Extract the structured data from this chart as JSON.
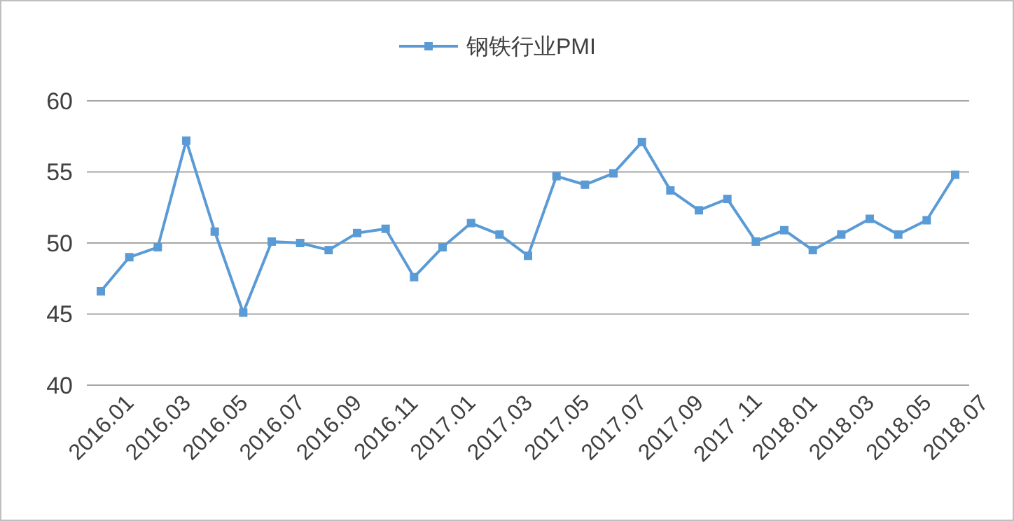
{
  "chart_data": {
    "type": "line",
    "categories": [
      "2016.01",
      null,
      "2016.03",
      null,
      "2016.05",
      null,
      "2016.07",
      null,
      "2016.09",
      null,
      "2016.11",
      null,
      "2017.01",
      null,
      "2017.03",
      null,
      "2017.05",
      null,
      "2017.07",
      null,
      "2017.09",
      null,
      "2017 .11",
      null,
      "2018.01",
      null,
      "2018.03",
      null,
      "2018.05",
      null,
      "2018.07"
    ],
    "series": [
      {
        "name": "钢铁行业PMI",
        "color": "#5b9bd5",
        "values": [
          46.6,
          49.0,
          49.7,
          57.2,
          50.8,
          45.1,
          50.1,
          50.0,
          49.5,
          50.7,
          51.0,
          47.6,
          49.7,
          51.4,
          50.6,
          49.1,
          54.7,
          54.1,
          54.9,
          57.1,
          53.7,
          52.3,
          53.1,
          50.1,
          50.9,
          49.5,
          50.6,
          51.7,
          50.6,
          51.6,
          54.8
        ]
      }
    ],
    "ylim": [
      40,
      60
    ],
    "yticks": [
      40,
      45,
      50,
      55,
      60
    ],
    "grid": "y",
    "legend": "top",
    "marker": "square",
    "line_style": "solid"
  }
}
